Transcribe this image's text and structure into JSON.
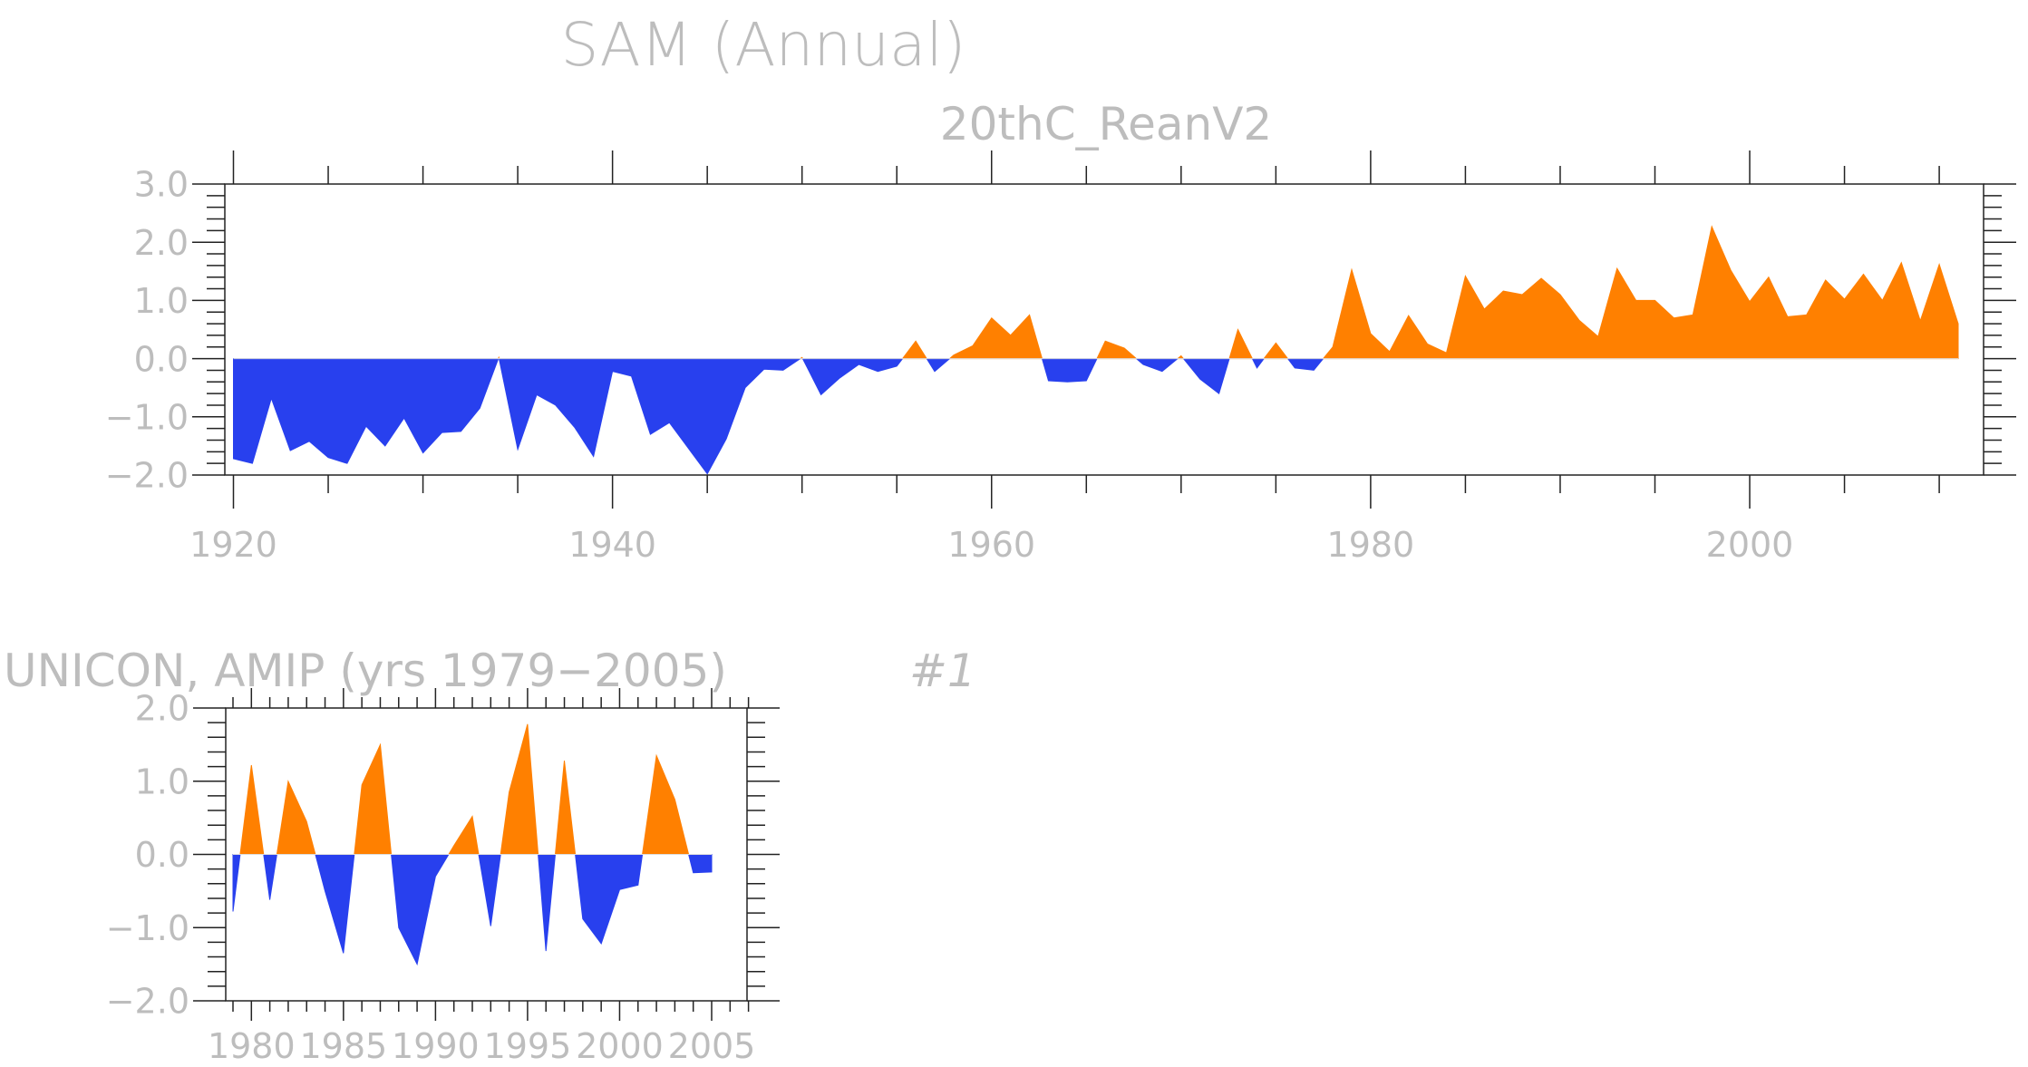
{
  "figure": {
    "title": "SAM (Annual)",
    "subtitle": "20thC_ReanV2",
    "panel2_title": "UNICON, AMIP (yrs 1979−2005)",
    "panel2_label": "#1"
  },
  "colors": {
    "positive": "#ff8000",
    "negative": "#2840ee",
    "text": "#bdbdbd",
    "axis": "#222222"
  },
  "chart_data": [
    {
      "type": "area",
      "subtitle": "20thC_ReanV2",
      "xlim": [
        1920,
        2011
      ],
      "ylim": [
        -2.0,
        3.0
      ],
      "xticks": [
        1920,
        1940,
        1960,
        1980,
        2000
      ],
      "yticks": [
        -2.0,
        -1.0,
        0.0,
        1.0,
        2.0,
        3.0
      ],
      "ytick_labels": [
        "−2.0",
        "−1.0",
        "0.0",
        "1.0",
        "2.0",
        "3.0"
      ],
      "x": [
        1920,
        1921,
        1922,
        1923,
        1924,
        1925,
        1926,
        1927,
        1928,
        1929,
        1930,
        1931,
        1932,
        1933,
        1934,
        1935,
        1936,
        1937,
        1938,
        1939,
        1940,
        1941,
        1942,
        1943,
        1944,
        1945,
        1946,
        1947,
        1948,
        1949,
        1950,
        1951,
        1952,
        1953,
        1954,
        1955,
        1956,
        1957,
        1958,
        1959,
        1960,
        1961,
        1962,
        1963,
        1964,
        1965,
        1966,
        1967,
        1968,
        1969,
        1970,
        1971,
        1972,
        1973,
        1974,
        1975,
        1976,
        1977,
        1978,
        1979,
        1980,
        1981,
        1982,
        1983,
        1984,
        1985,
        1986,
        1987,
        1988,
        1989,
        1990,
        1991,
        1992,
        1993,
        1994,
        1995,
        1996,
        1997,
        1998,
        1999,
        2000,
        2001,
        2002,
        2003,
        2004,
        2005,
        2006,
        2007,
        2008,
        2009,
        2010,
        2011
      ],
      "values": [
        -1.72,
        -1.8,
        -0.68,
        -1.58,
        -1.42,
        -1.7,
        -1.8,
        -1.16,
        -1.5,
        -1.02,
        -1.62,
        -1.27,
        -1.25,
        -0.85,
        0.02,
        -1.56,
        -0.62,
        -0.8,
        -1.18,
        -1.68,
        -0.22,
        -0.3,
        -1.3,
        -1.1,
        -1.54,
        -1.98,
        -1.38,
        -0.5,
        -0.18,
        -0.2,
        0.02,
        -0.62,
        -0.33,
        -0.1,
        -0.22,
        -0.13,
        0.3,
        -0.22,
        0.06,
        0.22,
        0.7,
        0.4,
        0.75,
        -0.38,
        -0.4,
        -0.38,
        0.3,
        0.18,
        -0.1,
        -0.22,
        0.05,
        -0.35,
        -0.6,
        0.5,
        -0.16,
        0.27,
        -0.16,
        -0.2,
        0.2,
        1.53,
        0.43,
        0.12,
        0.74,
        0.25,
        0.1,
        1.42,
        0.85,
        1.16,
        1.1,
        1.38,
        1.1,
        0.66,
        0.38,
        1.55,
        1.0,
        1.0,
        0.7,
        0.75,
        2.27,
        1.52,
        0.98,
        1.4,
        0.72,
        0.75,
        1.35,
        1.02,
        1.45,
        1.0,
        1.65,
        0.65,
        1.62,
        0.6
      ]
    },
    {
      "type": "area",
      "title": "UNICON, AMIP (yrs 1979−2005)",
      "xlim": [
        1979,
        2005
      ],
      "ylim": [
        -2.0,
        2.0
      ],
      "xticks": [
        1980,
        1985,
        1990,
        1995,
        2000,
        2005
      ],
      "yticks": [
        -2.0,
        -1.0,
        0.0,
        1.0,
        2.0
      ],
      "ytick_labels": [
        "−2.0",
        "−1.0",
        "0.0",
        "1.0",
        "2.0"
      ],
      "x": [
        1979,
        1980,
        1981,
        1982,
        1983,
        1984,
        1985,
        1986,
        1987,
        1988,
        1989,
        1990,
        1991,
        1992,
        1993,
        1994,
        1995,
        1996,
        1997,
        1998,
        1999,
        2000,
        2001,
        2002,
        2003,
        2004,
        2005
      ],
      "values": [
        -0.78,
        1.22,
        -0.62,
        1.0,
        0.45,
        -0.5,
        -1.35,
        0.95,
        1.5,
        -1.0,
        -1.5,
        -0.3,
        0.12,
        0.52,
        -0.98,
        0.85,
        1.78,
        -1.32,
        1.28,
        -0.88,
        -1.22,
        -0.48,
        -0.42,
        1.35,
        0.75,
        -0.25,
        -0.24
      ]
    }
  ]
}
